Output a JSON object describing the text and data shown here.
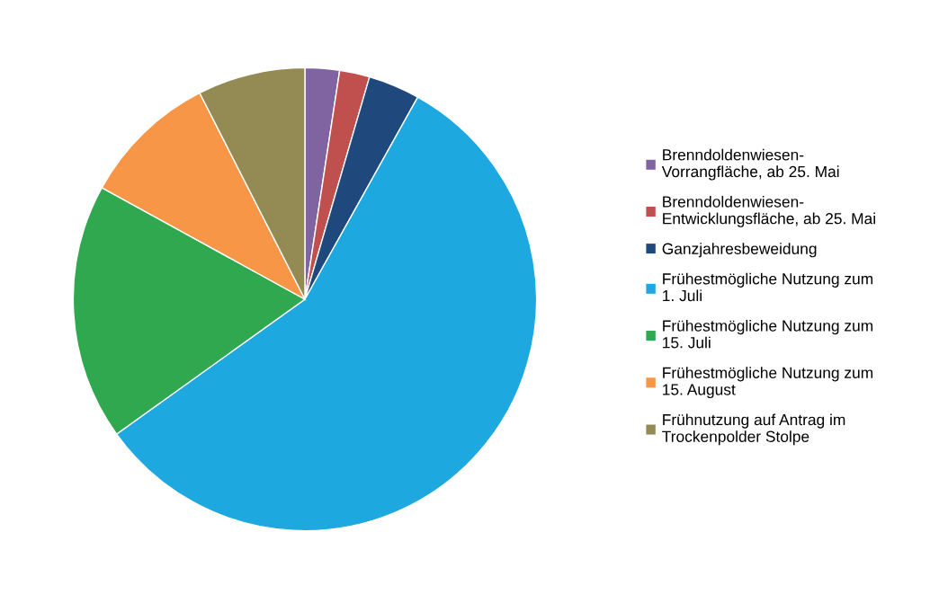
{
  "chart_data": {
    "type": "pie",
    "categories": [
      "Brenndoldenwiesen-\nVorrangfläche, ab 25. Mai",
      "Brenndoldenwiesen-\nEntwicklungsfläche, ab 25. Mai",
      "Ganzjahresbeweidung",
      "Frühestmögliche Nutzung zum\n1. Juli",
      "Frühestmögliche Nutzung zum\n15. Juli",
      "Frühestmögliche Nutzung zum\n15. August",
      "Frühnutzung auf Antrag im\nTrockenpolder Stolpe"
    ],
    "values": [
      2.4,
      2.1,
      3.6,
      57.0,
      17.9,
      9.5,
      7.5
    ],
    "colors": [
      "#8064a2",
      "#c0504d",
      "#1f497d",
      "#1ea8e0",
      "#2fa84f",
      "#f79646",
      "#948a54"
    ],
    "legend": "right"
  }
}
